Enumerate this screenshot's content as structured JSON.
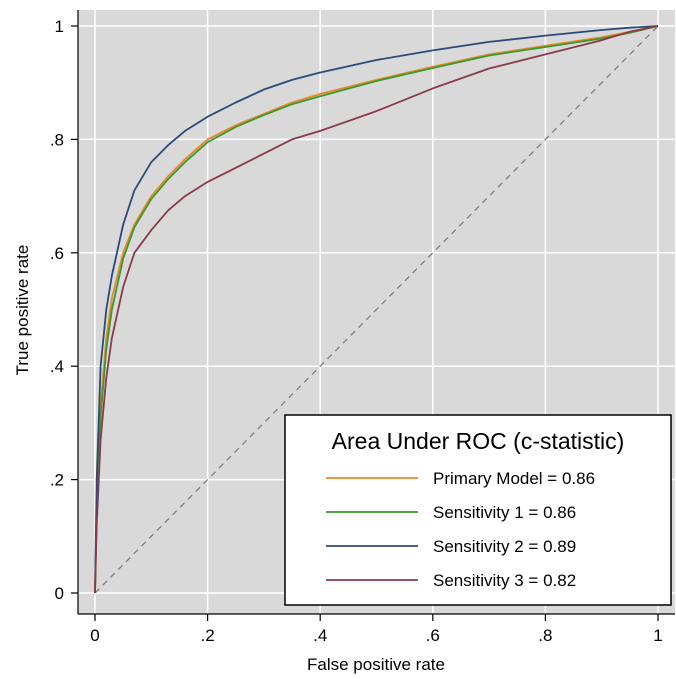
{
  "chart_data": {
    "type": "line",
    "title": "",
    "xlabel": "False positive rate",
    "ylabel": "True positive rate",
    "xlim": [
      0,
      1
    ],
    "ylim": [
      0,
      1
    ],
    "grid": true,
    "x_ticks": [
      {
        "value": 0,
        "label": "0"
      },
      {
        "value": 0.2,
        "label": ".2"
      },
      {
        "value": 0.4,
        "label": ".4"
      },
      {
        "value": 0.6,
        "label": ".6"
      },
      {
        "value": 0.8,
        "label": ".8"
      },
      {
        "value": 1,
        "label": "1"
      }
    ],
    "y_ticks": [
      {
        "value": 0,
        "label": "0"
      },
      {
        "value": 0.2,
        "label": ".2"
      },
      {
        "value": 0.4,
        "label": ".4"
      },
      {
        "value": 0.6,
        "label": ".6"
      },
      {
        "value": 0.8,
        "label": ".8"
      },
      {
        "value": 1,
        "label": "1"
      }
    ],
    "legend": {
      "title": "Area Under ROC (c-statistic)",
      "placement": "bottom-right"
    },
    "reference_line": {
      "x": [
        0,
        1
      ],
      "y": [
        0,
        1
      ],
      "style": "dashed",
      "color": "#7f7f7f"
    },
    "series": [
      {
        "name": "Primary Model = 0.86",
        "color": "#e8862a",
        "x": [
          0,
          0.003,
          0.01,
          0.02,
          0.03,
          0.05,
          0.07,
          0.1,
          0.13,
          0.16,
          0.2,
          0.25,
          0.3,
          0.35,
          0.4,
          0.5,
          0.6,
          0.7,
          0.8,
          0.9,
          0.95,
          1
        ],
        "y": [
          0,
          0.15,
          0.33,
          0.45,
          0.52,
          0.6,
          0.65,
          0.7,
          0.735,
          0.765,
          0.8,
          0.825,
          0.845,
          0.865,
          0.88,
          0.905,
          0.928,
          0.95,
          0.965,
          0.98,
          0.99,
          1
        ]
      },
      {
        "name": "Sensitivity 1 = 0.86",
        "color": "#3a9a2e",
        "x": [
          0,
          0.003,
          0.01,
          0.02,
          0.03,
          0.05,
          0.07,
          0.1,
          0.13,
          0.16,
          0.2,
          0.25,
          0.3,
          0.35,
          0.4,
          0.5,
          0.6,
          0.7,
          0.8,
          0.9,
          0.95,
          1
        ],
        "y": [
          0,
          0.14,
          0.31,
          0.43,
          0.5,
          0.59,
          0.645,
          0.695,
          0.73,
          0.76,
          0.795,
          0.822,
          0.843,
          0.862,
          0.876,
          0.903,
          0.926,
          0.948,
          0.963,
          0.978,
          0.988,
          1
        ]
      },
      {
        "name": "Sensitivity 2 = 0.89",
        "color": "#2b4a7a",
        "x": [
          0,
          0.003,
          0.01,
          0.02,
          0.03,
          0.05,
          0.07,
          0.1,
          0.13,
          0.16,
          0.2,
          0.25,
          0.3,
          0.35,
          0.4,
          0.5,
          0.6,
          0.7,
          0.8,
          0.9,
          0.95,
          1
        ],
        "y": [
          0,
          0.2,
          0.4,
          0.5,
          0.56,
          0.65,
          0.71,
          0.76,
          0.79,
          0.815,
          0.84,
          0.865,
          0.888,
          0.905,
          0.918,
          0.94,
          0.957,
          0.972,
          0.983,
          0.993,
          0.997,
          1
        ]
      },
      {
        "name": "Sensitivity 3 = 0.82",
        "color": "#8b3a4a",
        "x": [
          0,
          0.003,
          0.01,
          0.02,
          0.03,
          0.05,
          0.07,
          0.1,
          0.13,
          0.16,
          0.2,
          0.25,
          0.3,
          0.35,
          0.4,
          0.5,
          0.6,
          0.7,
          0.8,
          0.9,
          0.95,
          1
        ],
        "y": [
          0,
          0.12,
          0.27,
          0.38,
          0.45,
          0.54,
          0.6,
          0.64,
          0.675,
          0.7,
          0.725,
          0.75,
          0.775,
          0.8,
          0.815,
          0.85,
          0.89,
          0.925,
          0.95,
          0.975,
          0.99,
          1
        ]
      }
    ]
  }
}
